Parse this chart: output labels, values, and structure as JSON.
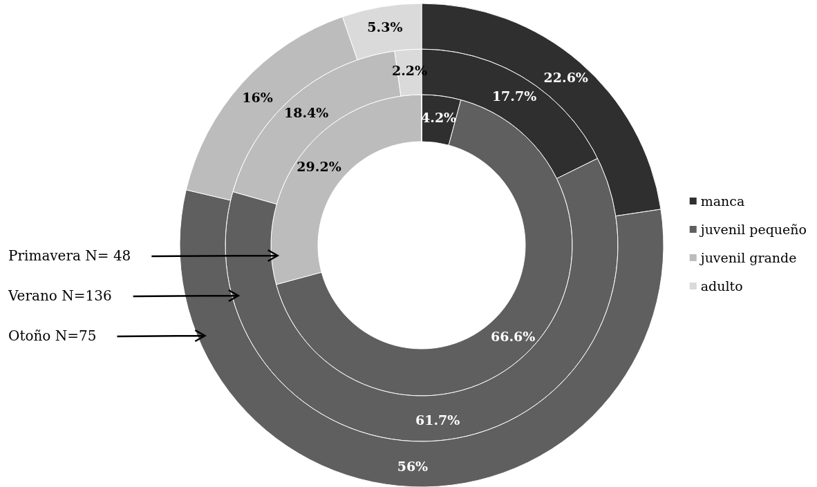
{
  "chart_data": {
    "type": "donut",
    "categories": [
      "manca",
      "juvenil pequeño",
      "juvenil grande",
      "adulto"
    ],
    "colors": [
      "#2f2f2f",
      "#5f5f5f",
      "#bcbcbc",
      "#dadada"
    ],
    "series": [
      {
        "values": [
          4.2,
          66.6,
          29.2,
          0
        ],
        "value_labels": [
          "4.2%",
          "66.6%",
          "29.2%",
          null
        ]
      },
      {
        "values": [
          17.7,
          61.7,
          18.4,
          2.2
        ],
        "value_labels": [
          "17.7%",
          "61.7%",
          "18.4%",
          "2.2%"
        ]
      },
      {
        "values": [
          22.6,
          56,
          16,
          5.3
        ],
        "value_labels": [
          "22.6%",
          "56%",
          "16%",
          "5.3%"
        ]
      }
    ],
    "annotations": [
      "Primavera N= 48",
      "Verano N=136",
      "Otoño N=75"
    ],
    "legend": "right"
  }
}
